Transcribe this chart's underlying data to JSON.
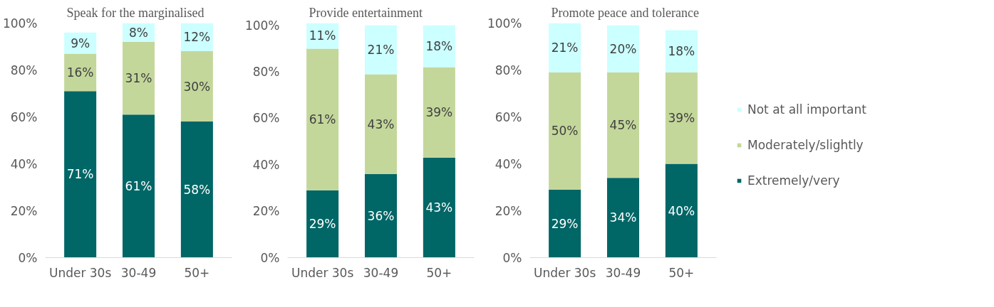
{
  "chart_data": [
    {
      "type": "bar",
      "stacked": true,
      "title": "Speak for the marginalised",
      "categories": [
        "Under 30s",
        "30-49",
        "50+"
      ],
      "ylim": [
        0,
        100
      ],
      "yticks": [
        {
          "value": 0,
          "label": "0%"
        },
        {
          "value": 20,
          "label": "20%"
        },
        {
          "value": 40,
          "label": "40%"
        },
        {
          "value": 60,
          "label": "60%"
        },
        {
          "value": 80,
          "label": "80%"
        },
        {
          "value": 100,
          "label": "100%"
        }
      ],
      "grid": false,
      "legend": false,
      "series": [
        {
          "color": "#006666",
          "values": [
            71,
            61,
            58
          ],
          "value_labels": [
            "71%",
            "61%",
            "58%"
          ]
        },
        {
          "color": "#c4d79b",
          "values": [
            16,
            31,
            30
          ],
          "value_labels": [
            "16%",
            "31%",
            "30%"
          ]
        },
        {
          "color": "#ccffff",
          "values": [
            9,
            8,
            12
          ],
          "value_labels": [
            "9%",
            "8%",
            "12%"
          ]
        }
      ]
    },
    {
      "type": "bar",
      "stacked": true,
      "title": "Provide entertainment",
      "categories": [
        "Under 30s",
        "30-49",
        "50+"
      ],
      "ylim": [
        0,
        101
      ],
      "yticks": [
        {
          "value": 0,
          "label": "0%"
        },
        {
          "value": 20,
          "label": "20%"
        },
        {
          "value": 40,
          "label": "40%"
        },
        {
          "value": 60,
          "label": "60%"
        },
        {
          "value": 80,
          "label": "80%"
        },
        {
          "value": 100,
          "label": "100%"
        }
      ],
      "grid": false,
      "legend": false,
      "series": [
        {
          "color": "#006666",
          "values": [
            29,
            36,
            43
          ],
          "value_labels": [
            "29%",
            "36%",
            "43%"
          ]
        },
        {
          "color": "#c4d79b",
          "values": [
            61,
            43,
            39
          ],
          "value_labels": [
            "61%",
            "43%",
            "39%"
          ]
        },
        {
          "color": "#ccffff",
          "values": [
            11,
            21,
            18
          ],
          "value_labels": [
            "11%",
            "21%",
            "18%"
          ]
        }
      ]
    },
    {
      "type": "bar",
      "stacked": true,
      "title": "Promote peace and tolerance",
      "categories": [
        "Under 30s",
        "30-49",
        "50+"
      ],
      "ylim": [
        0,
        100
      ],
      "yticks": [
        {
          "value": 0,
          "label": "0%"
        },
        {
          "value": 20,
          "label": "20%"
        },
        {
          "value": 40,
          "label": "40%"
        },
        {
          "value": 60,
          "label": "60%"
        },
        {
          "value": 80,
          "label": "80%"
        },
        {
          "value": 100,
          "label": "100%"
        }
      ],
      "grid": false,
      "legend": "right",
      "series": [
        {
          "name": "Extremely/very",
          "color": "#006666",
          "values": [
            29,
            34,
            40
          ],
          "value_labels": [
            "29%",
            "34%",
            "40%"
          ]
        },
        {
          "name": "Moderately/slightly",
          "color": "#c4d79b",
          "values": [
            50,
            45,
            39
          ],
          "value_labels": [
            "50%",
            "45%",
            "39%"
          ]
        },
        {
          "name": "Not at all important",
          "color": "#ccffff",
          "values": [
            21,
            20,
            18
          ],
          "value_labels": [
            "21%",
            "20%",
            "18%"
          ]
        }
      ]
    }
  ]
}
